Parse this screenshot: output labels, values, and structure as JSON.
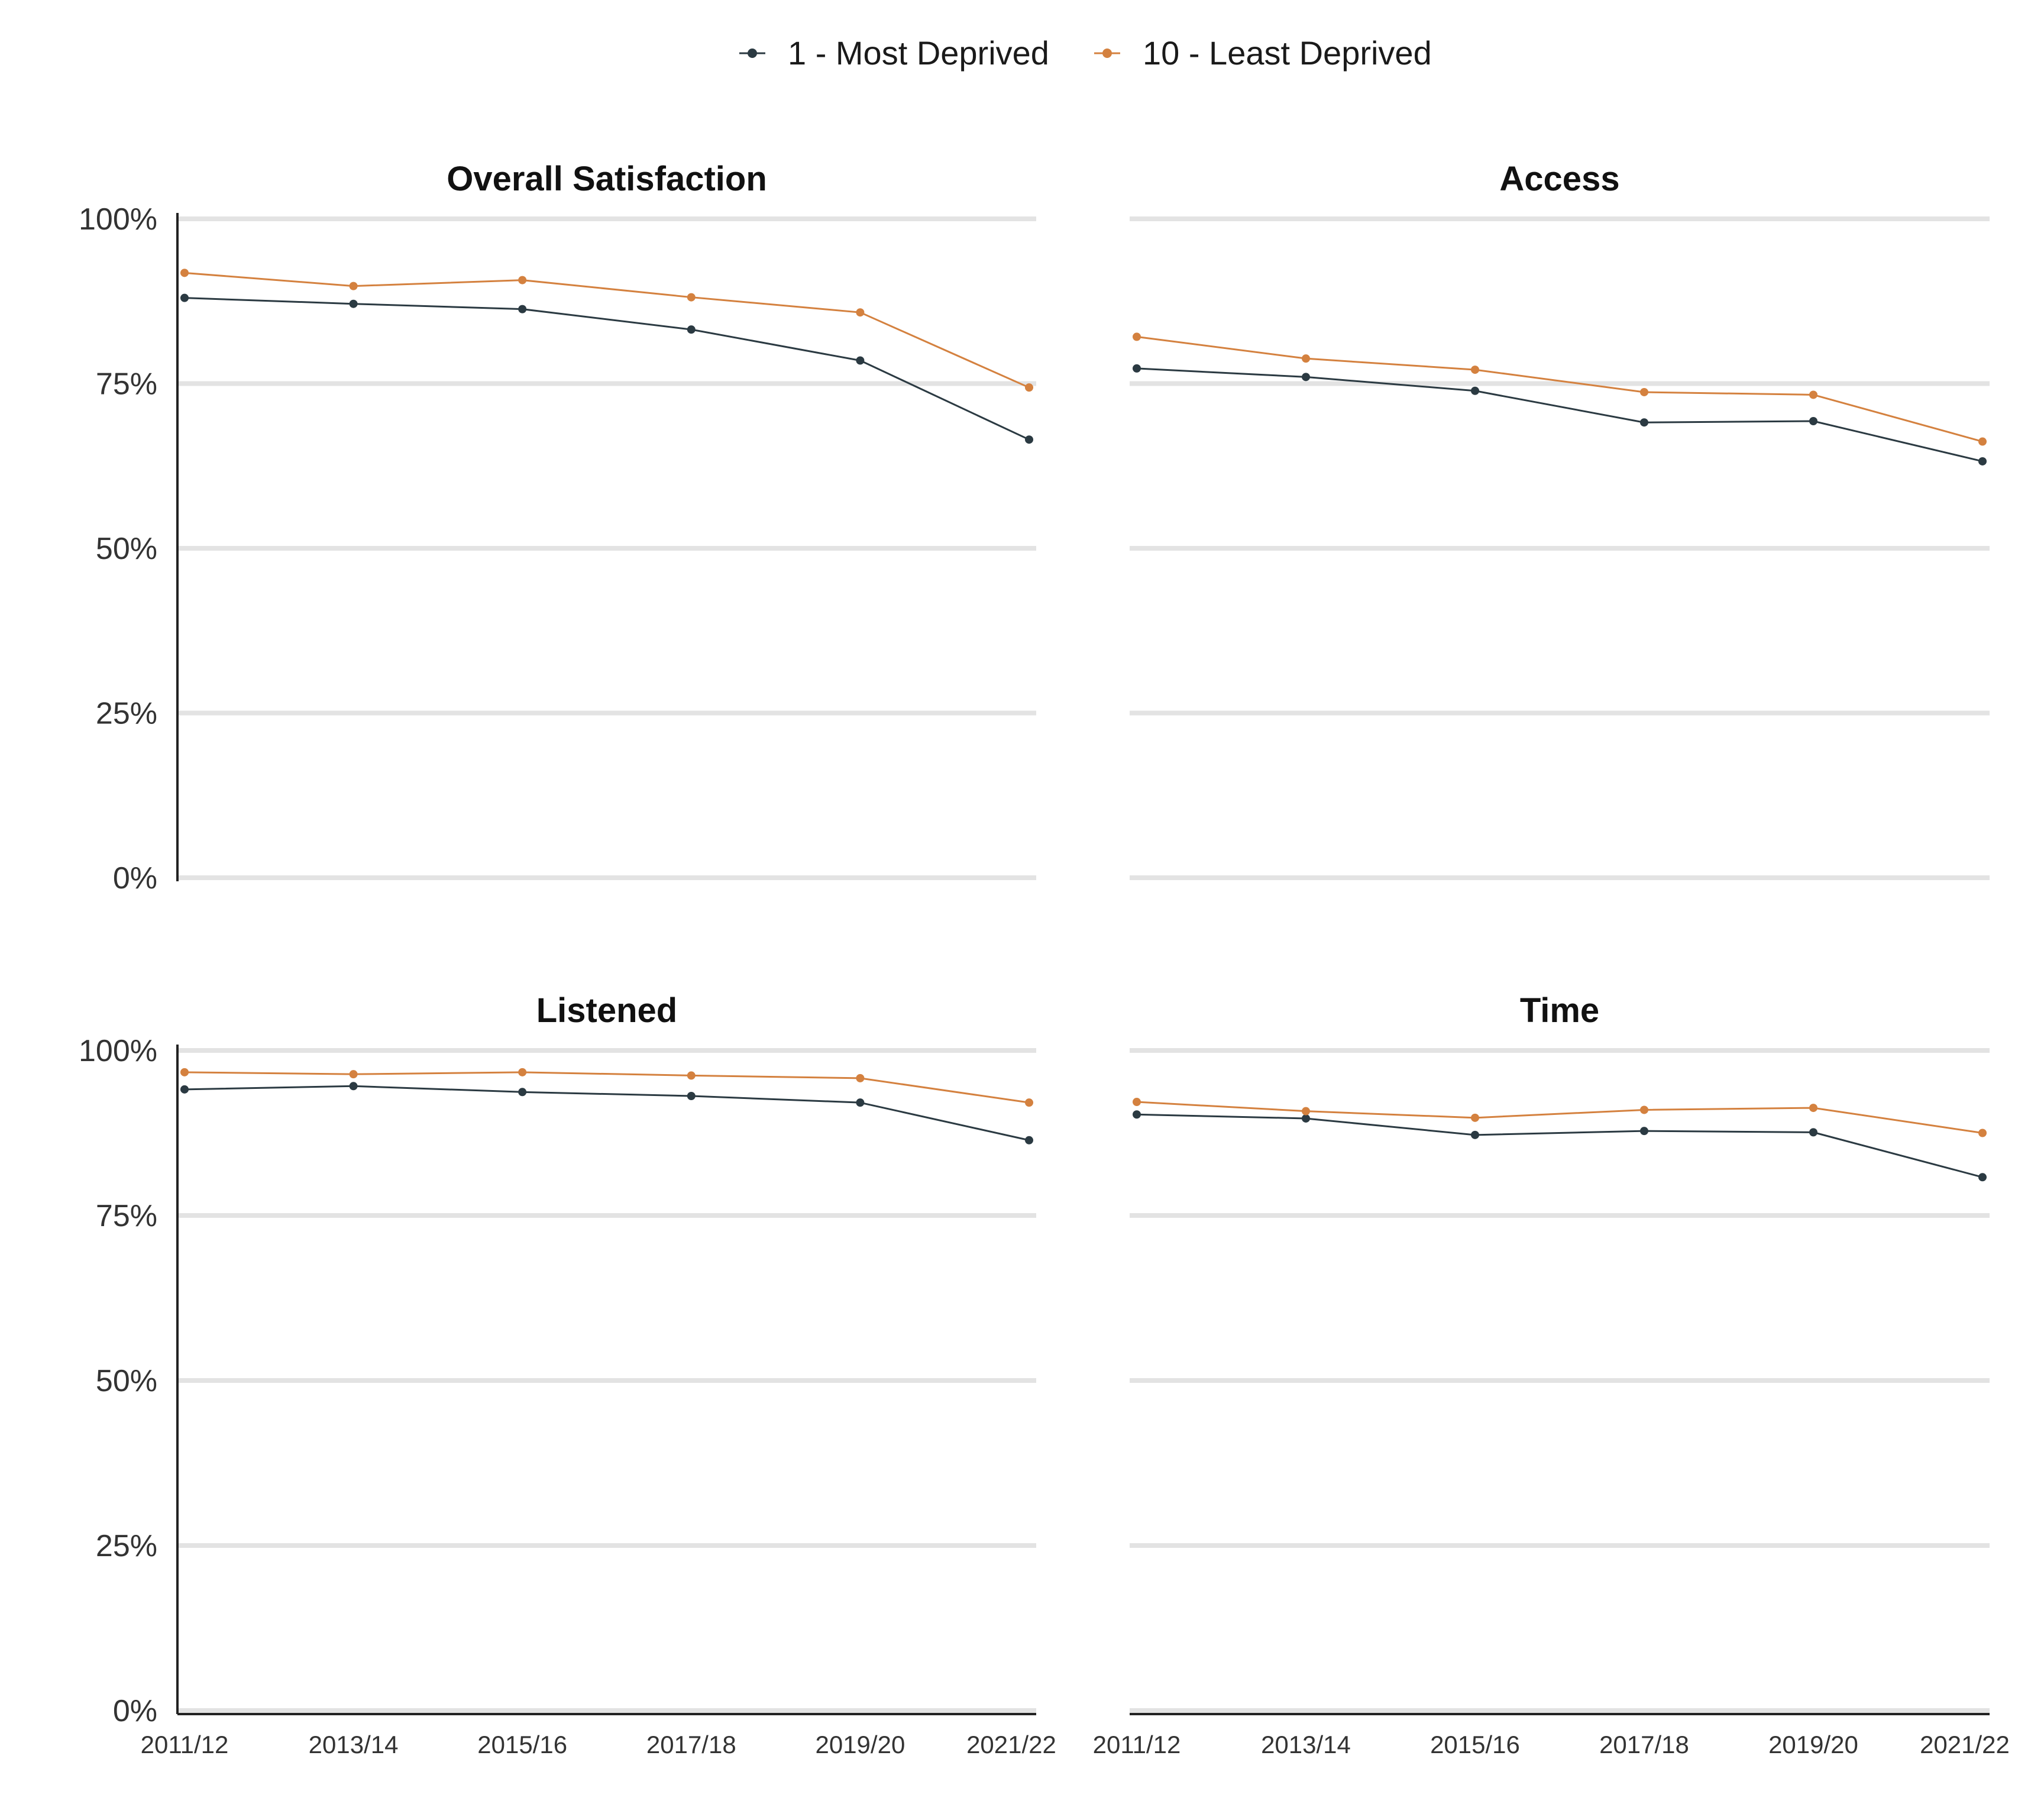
{
  "legend": {
    "items": [
      {
        "label": "1 - Most Deprived",
        "color": "#2b3a42"
      },
      {
        "label": "10 - Least Deprived",
        "color": "#d4813f"
      }
    ]
  },
  "chart_data": [
    {
      "type": "line",
      "title": "Overall Satisfaction",
      "x": [
        "2011/12",
        "2013/14",
        "2015/16",
        "2017/18",
        "2019/20",
        "2021/22"
      ],
      "ylim": [
        0,
        100
      ],
      "yticks": [
        "0%",
        "25%",
        "50%",
        "75%",
        "100%"
      ],
      "grid": true,
      "legend_position": "top",
      "series": [
        {
          "name": "1 - Most Deprived",
          "color": "#2b3a42",
          "values": [
            88.0,
            87.1,
            86.3,
            83.2,
            78.5,
            66.5
          ]
        },
        {
          "name": "10 - Least Deprived",
          "color": "#d4813f",
          "values": [
            91.8,
            89.8,
            90.7,
            88.1,
            85.8,
            74.4
          ]
        }
      ]
    },
    {
      "type": "line",
      "title": "Access",
      "x": [
        "2011/12",
        "2013/14",
        "2015/16",
        "2017/18",
        "2019/20",
        "2021/22"
      ],
      "ylim": [
        0,
        100
      ],
      "yticks": [
        "0%",
        "25%",
        "50%",
        "75%",
        "100%"
      ],
      "grid": true,
      "legend_position": "top",
      "series": [
        {
          "name": "1 - Most Deprived",
          "color": "#2b3a42",
          "values": [
            77.3,
            76.0,
            73.9,
            69.1,
            69.3,
            63.2
          ]
        },
        {
          "name": "10 - Least Deprived",
          "color": "#d4813f",
          "values": [
            82.1,
            78.8,
            77.1,
            73.7,
            73.3,
            66.2
          ]
        }
      ]
    },
    {
      "type": "line",
      "title": "Listened",
      "x": [
        "2011/12",
        "2013/14",
        "2015/16",
        "2017/18",
        "2019/20",
        "2021/22"
      ],
      "ylim": [
        0,
        100
      ],
      "yticks": [
        "0%",
        "25%",
        "50%",
        "75%",
        "100%"
      ],
      "grid": true,
      "legend_position": "top",
      "series": [
        {
          "name": "1 - Most Deprived",
          "color": "#2b3a42",
          "values": [
            94.1,
            94.6,
            93.7,
            93.1,
            92.1,
            86.4
          ]
        },
        {
          "name": "10 - Least Deprived",
          "color": "#d4813f",
          "values": [
            96.7,
            96.4,
            96.7,
            96.2,
            95.8,
            92.1
          ]
        }
      ]
    },
    {
      "type": "line",
      "title": "Time",
      "x": [
        "2011/12",
        "2013/14",
        "2015/16",
        "2017/18",
        "2019/20",
        "2021/22"
      ],
      "ylim": [
        0,
        100
      ],
      "yticks": [
        "0%",
        "25%",
        "50%",
        "75%",
        "100%"
      ],
      "grid": true,
      "legend_position": "top",
      "series": [
        {
          "name": "1 - Most Deprived",
          "color": "#2b3a42",
          "values": [
            90.3,
            89.7,
            87.2,
            87.8,
            87.6,
            80.8
          ]
        },
        {
          "name": "10 - Least Deprived",
          "color": "#d4813f",
          "values": [
            92.2,
            90.8,
            89.8,
            91.0,
            91.3,
            87.5
          ]
        }
      ]
    }
  ]
}
